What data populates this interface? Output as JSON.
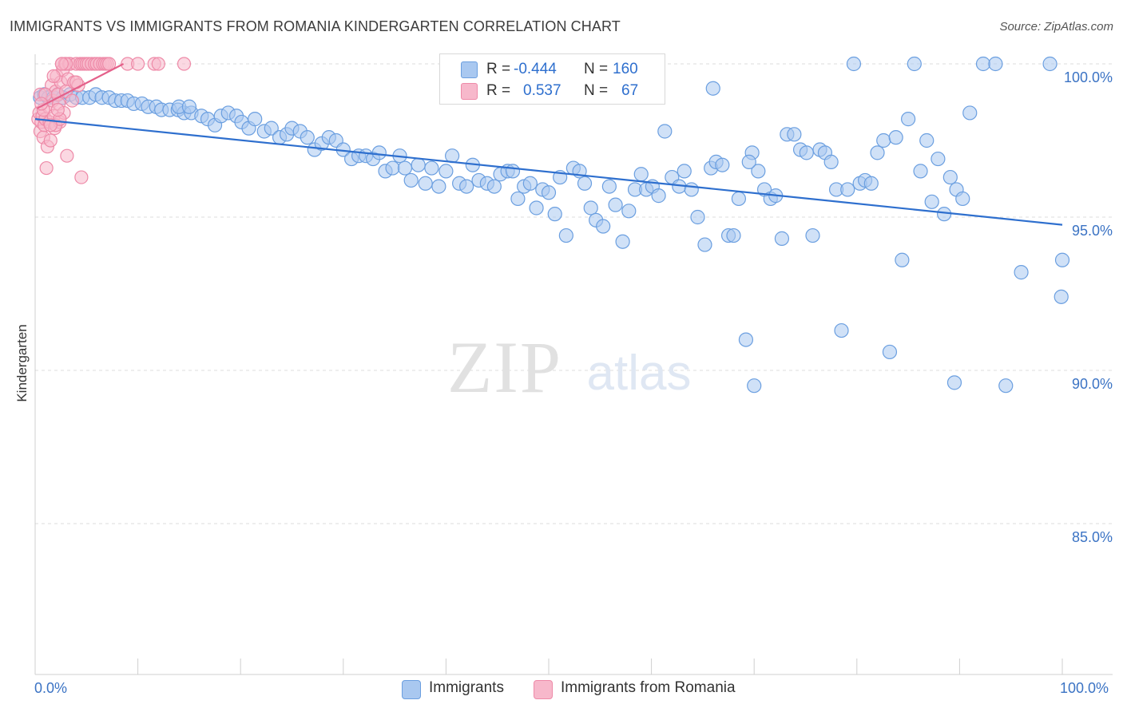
{
  "title": "IMMIGRANTS VS IMMIGRANTS FROM ROMANIA KINDERGARTEN CORRELATION CHART",
  "source": "Source: ZipAtlas.com",
  "watermark": {
    "zip": "ZIP",
    "atlas": "atlas"
  },
  "colors": {
    "blue_fill": "#a9c8f0",
    "blue_stroke": "#6b9fe0",
    "blue_line": "#2e6fce",
    "pink_fill": "#f7b8cb",
    "pink_stroke": "#ee8aa8",
    "pink_line": "#e4608a",
    "axis_text": "#3b73c4",
    "grid": "#dcdcdc"
  },
  "legend": {
    "rows": [
      {
        "r_label": "R =",
        "r_value": "-0.444",
        "n_label": "N =",
        "n_value": "160"
      },
      {
        "r_label": "R =",
        "r_value": "0.537",
        "n_label": "N =",
        "n_value": "67"
      }
    ]
  },
  "bottom_legend": {
    "series1": "Immigrants",
    "series2": "Immigrants from Romania"
  },
  "chart_data": {
    "type": "scatter",
    "title": "IMMIGRANTS VS IMMIGRANTS FROM ROMANIA KINDERGARTEN CORRELATION CHART",
    "xlabel": "",
    "ylabel": "Kindergarten",
    "xlim": [
      0,
      100
    ],
    "ylim": [
      80.5,
      100.8
    ],
    "x_tick_labels": [
      "0.0%",
      "100.0%"
    ],
    "y_ticks": [
      {
        "value": 100,
        "label": "100.0%"
      },
      {
        "value": 95,
        "label": "95.0%"
      },
      {
        "value": 90,
        "label": "90.0%"
      },
      {
        "value": 85,
        "label": "85.0%"
      }
    ],
    "legend_position": "top-center",
    "series": [
      {
        "name": "Immigrants",
        "R": -0.444,
        "N": 160,
        "trend": {
          "x": [
            0,
            100
          ],
          "y": [
            98.2,
            94.75
          ]
        },
        "points": [
          [
            0.5,
            98.9
          ],
          [
            0.9,
            99.0
          ],
          [
            1.3,
            98.9
          ],
          [
            1.8,
            98.9
          ],
          [
            2.2,
            99.0
          ],
          [
            2.7,
            98.9
          ],
          [
            3.4,
            99.0
          ],
          [
            4.0,
            98.9
          ],
          [
            4.6,
            98.9
          ],
          [
            5.3,
            98.9
          ],
          [
            5.9,
            99.0
          ],
          [
            6.5,
            98.9
          ],
          [
            7.2,
            98.9
          ],
          [
            7.8,
            98.8
          ],
          [
            8.4,
            98.8
          ],
          [
            9.0,
            98.8
          ],
          [
            9.6,
            98.7
          ],
          [
            10.4,
            98.7
          ],
          [
            11.0,
            98.6
          ],
          [
            11.8,
            98.6
          ],
          [
            12.3,
            98.5
          ],
          [
            13.1,
            98.5
          ],
          [
            13.9,
            98.5
          ],
          [
            14.5,
            98.4
          ],
          [
            15.2,
            98.4
          ],
          [
            14.0,
            98.6
          ],
          [
            15.0,
            98.6
          ],
          [
            16.2,
            98.3
          ],
          [
            16.8,
            98.2
          ],
          [
            17.5,
            98.0
          ],
          [
            18.1,
            98.3
          ],
          [
            18.8,
            98.4
          ],
          [
            19.6,
            98.3
          ],
          [
            20.1,
            98.1
          ],
          [
            20.8,
            97.9
          ],
          [
            21.4,
            98.2
          ],
          [
            22.3,
            97.8
          ],
          [
            23.0,
            97.9
          ],
          [
            23.8,
            97.6
          ],
          [
            24.5,
            97.7
          ],
          [
            25.0,
            97.9
          ],
          [
            25.8,
            97.8
          ],
          [
            26.5,
            97.6
          ],
          [
            27.2,
            97.2
          ],
          [
            27.9,
            97.4
          ],
          [
            28.6,
            97.6
          ],
          [
            29.3,
            97.5
          ],
          [
            30.0,
            97.2
          ],
          [
            30.8,
            96.9
          ],
          [
            31.5,
            97.0
          ],
          [
            32.2,
            97.0
          ],
          [
            32.9,
            96.9
          ],
          [
            33.5,
            97.1
          ],
          [
            34.1,
            96.5
          ],
          [
            34.8,
            96.6
          ],
          [
            35.5,
            97.0
          ],
          [
            36.0,
            96.6
          ],
          [
            36.6,
            96.2
          ],
          [
            37.3,
            96.7
          ],
          [
            38.0,
            96.1
          ],
          [
            38.6,
            96.6
          ],
          [
            39.3,
            96.0
          ],
          [
            40.0,
            96.5
          ],
          [
            40.6,
            97.0
          ],
          [
            41.3,
            96.1
          ],
          [
            42.0,
            96.0
          ],
          [
            42.6,
            96.7
          ],
          [
            43.2,
            96.2
          ],
          [
            44.0,
            96.1
          ],
          [
            44.7,
            96.0
          ],
          [
            45.3,
            96.4
          ],
          [
            46.0,
            96.5
          ],
          [
            46.5,
            96.5
          ],
          [
            47.0,
            95.6
          ],
          [
            47.6,
            96.0
          ],
          [
            48.2,
            96.1
          ],
          [
            48.8,
            95.3
          ],
          [
            49.4,
            95.9
          ],
          [
            50.0,
            95.8
          ],
          [
            50.6,
            95.1
          ],
          [
            51.1,
            96.3
          ],
          [
            51.7,
            94.4
          ],
          [
            52.4,
            96.6
          ],
          [
            53.0,
            96.5
          ],
          [
            53.5,
            96.1
          ],
          [
            54.1,
            95.3
          ],
          [
            54.6,
            94.9
          ],
          [
            55.3,
            94.7
          ],
          [
            55.9,
            96.0
          ],
          [
            56.5,
            95.4
          ],
          [
            57.2,
            94.2
          ],
          [
            57.8,
            95.2
          ],
          [
            58.4,
            95.9
          ],
          [
            59.0,
            96.4
          ],
          [
            59.5,
            95.9
          ],
          [
            60.1,
            96.0
          ],
          [
            60.7,
            95.7
          ],
          [
            61.3,
            97.8
          ],
          [
            62.0,
            96.3
          ],
          [
            62.7,
            96.0
          ],
          [
            63.2,
            96.5
          ],
          [
            63.9,
            95.9
          ],
          [
            64.5,
            95.0
          ],
          [
            65.2,
            94.1
          ],
          [
            65.8,
            96.6
          ],
          [
            66.3,
            96.8
          ],
          [
            66.9,
            96.7
          ],
          [
            67.5,
            94.4
          ],
          [
            68.0,
            94.4
          ],
          [
            68.5,
            95.6
          ],
          [
            69.2,
            91.0
          ],
          [
            69.8,
            97.1
          ],
          [
            70.4,
            96.5
          ],
          [
            71.0,
            95.9
          ],
          [
            71.6,
            95.6
          ],
          [
            72.1,
            95.7
          ],
          [
            72.7,
            94.3
          ],
          [
            73.2,
            97.7
          ],
          [
            73.9,
            97.7
          ],
          [
            74.5,
            97.2
          ],
          [
            75.1,
            97.1
          ],
          [
            75.7,
            94.4
          ],
          [
            76.4,
            97.2
          ],
          [
            76.9,
            97.1
          ],
          [
            77.5,
            96.8
          ],
          [
            78.0,
            95.9
          ],
          [
            78.5,
            91.3
          ],
          [
            79.1,
            95.9
          ],
          [
            79.7,
            100.0
          ],
          [
            80.3,
            96.1
          ],
          [
            80.8,
            96.2
          ],
          [
            81.4,
            96.1
          ],
          [
            82.0,
            97.1
          ],
          [
            82.6,
            97.5
          ],
          [
            83.2,
            90.6
          ],
          [
            83.8,
            97.6
          ],
          [
            84.4,
            93.6
          ],
          [
            85.0,
            98.2
          ],
          [
            85.6,
            100.0
          ],
          [
            86.2,
            96.5
          ],
          [
            86.8,
            97.5
          ],
          [
            87.3,
            95.5
          ],
          [
            87.9,
            96.9
          ],
          [
            88.5,
            95.1
          ],
          [
            89.1,
            96.3
          ],
          [
            89.7,
            95.9
          ],
          [
            90.3,
            95.6
          ],
          [
            91.0,
            98.4
          ],
          [
            92.3,
            100.0
          ],
          [
            93.5,
            100.0
          ],
          [
            94.5,
            89.5
          ],
          [
            96.0,
            93.2
          ],
          [
            98.8,
            100.0
          ],
          [
            89.5,
            89.6
          ],
          [
            99.9,
            92.4
          ],
          [
            100.0,
            93.6
          ],
          [
            70.0,
            89.5
          ],
          [
            66.0,
            99.2
          ],
          [
            69.5,
            96.8
          ]
        ]
      },
      {
        "name": "Immigrants from Romania",
        "R": 0.537,
        "N": 67,
        "trend": {
          "x": [
            0.2,
            8.6
          ],
          "y": [
            98.55,
            100.0
          ]
        },
        "points": [
          [
            0.3,
            98.2
          ],
          [
            0.4,
            98.4
          ],
          [
            0.5,
            97.8
          ],
          [
            0.6,
            98.1
          ],
          [
            0.7,
            98.3
          ],
          [
            0.8,
            97.6
          ],
          [
            0.9,
            98.0
          ],
          [
            1.0,
            98.2
          ],
          [
            1.1,
            96.6
          ],
          [
            1.2,
            97.3
          ],
          [
            1.3,
            98.6
          ],
          [
            1.4,
            98.1
          ],
          [
            1.5,
            97.5
          ],
          [
            1.6,
            99.3
          ],
          [
            1.7,
            98.8
          ],
          [
            1.8,
            98.3
          ],
          [
            1.9,
            97.9
          ],
          [
            2.0,
            99.1
          ],
          [
            2.1,
            99.6
          ],
          [
            2.2,
            99.0
          ],
          [
            2.3,
            98.7
          ],
          [
            2.4,
            98.1
          ],
          [
            2.5,
            99.4
          ],
          [
            2.6,
            100.0
          ],
          [
            2.7,
            99.8
          ],
          [
            2.8,
            98.4
          ],
          [
            2.9,
            100.0
          ],
          [
            3.0,
            99.1
          ],
          [
            3.1,
            97.0
          ],
          [
            3.2,
            99.5
          ],
          [
            3.3,
            100.0
          ],
          [
            3.4,
            100.0
          ],
          [
            3.6,
            98.8
          ],
          [
            3.8,
            99.4
          ],
          [
            4.0,
            100.0
          ],
          [
            4.2,
            99.3
          ],
          [
            4.4,
            100.0
          ],
          [
            4.5,
            96.3
          ],
          [
            4.6,
            100.0
          ],
          [
            4.8,
            100.0
          ],
          [
            5.0,
            100.0
          ],
          [
            5.2,
            100.0
          ],
          [
            5.5,
            100.0
          ],
          [
            5.8,
            100.0
          ],
          [
            6.0,
            100.0
          ],
          [
            6.3,
            100.0
          ],
          [
            6.6,
            100.0
          ],
          [
            6.8,
            100.0
          ],
          [
            7.0,
            100.0
          ],
          [
            7.2,
            100.0
          ],
          [
            9.0,
            100.0
          ],
          [
            10.0,
            100.0
          ],
          [
            11.6,
            100.0
          ],
          [
            12.0,
            100.0
          ],
          [
            14.5,
            100.0
          ],
          [
            1.8,
            99.6
          ],
          [
            2.0,
            98.0
          ],
          [
            2.4,
            98.2
          ],
          [
            0.5,
            99.0
          ],
          [
            0.8,
            98.5
          ],
          [
            1.0,
            99.0
          ],
          [
            1.5,
            98.0
          ],
          [
            2.2,
            98.5
          ],
          [
            3.0,
            100.0
          ],
          [
            0.6,
            98.7
          ],
          [
            4.0,
            99.4
          ],
          [
            2.6,
            100.0
          ]
        ]
      }
    ]
  }
}
